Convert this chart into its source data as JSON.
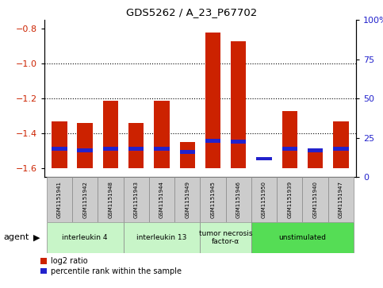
{
  "title": "GDS5262 / A_23_P67702",
  "samples": [
    "GSM1151941",
    "GSM1151942",
    "GSM1151948",
    "GSM1151943",
    "GSM1151944",
    "GSM1151949",
    "GSM1151945",
    "GSM1151946",
    "GSM1151950",
    "GSM1151939",
    "GSM1151940",
    "GSM1151947"
  ],
  "log2_ratio": [
    -1.33,
    -1.34,
    -1.21,
    -1.34,
    -1.21,
    -1.45,
    -0.82,
    -0.87,
    -1.6,
    -1.27,
    -1.5,
    -1.33
  ],
  "percentile_rank": [
    14,
    13,
    14,
    14,
    14,
    12,
    20,
    19,
    7,
    14,
    13,
    14
  ],
  "agents": [
    {
      "label": "interleukin 4",
      "start": 0,
      "end": 3,
      "color": "#c8f5c8"
    },
    {
      "label": "interleukin 13",
      "start": 3,
      "end": 6,
      "color": "#c8f5c8"
    },
    {
      "label": "tumor necrosis\nfactor-α",
      "start": 6,
      "end": 8,
      "color": "#c8f5c8"
    },
    {
      "label": "unstimulated",
      "start": 8,
      "end": 12,
      "color": "#55dd55"
    }
  ],
  "ylim_left": [
    -1.65,
    -0.75
  ],
  "ylim_right": [
    0,
    100
  ],
  "yticks_left": [
    -1.6,
    -1.4,
    -1.2,
    -1.0,
    -0.8
  ],
  "yticks_right": [
    0,
    25,
    50,
    75,
    100
  ],
  "bar_color": "#cc2200",
  "percentile_color": "#2222cc",
  "bar_width": 0.6,
  "background_color": "#ffffff",
  "grid_color": "#000000",
  "tick_label_color_left": "#cc2200",
  "tick_label_color_right": "#2222cc",
  "pct_scale_min": -1.6,
  "pct_scale_max": -0.8,
  "agent_label": "agent",
  "legend_items": [
    "log2 ratio",
    "percentile rank within the sample"
  ],
  "dotted_lines": [
    -1.4,
    -1.2,
    -1.0
  ]
}
